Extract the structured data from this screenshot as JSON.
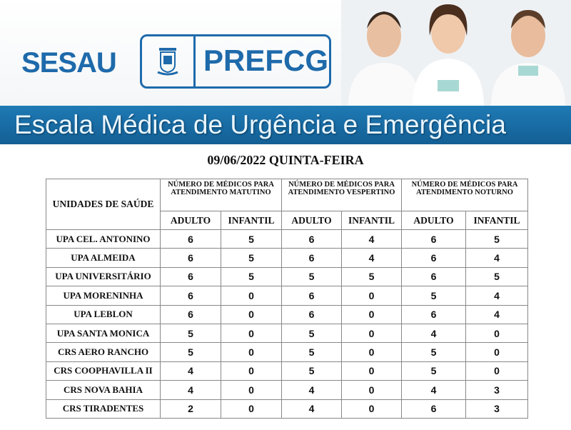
{
  "header": {
    "sesau_logo": "SESAU",
    "prefcg_logo": "PREFCG",
    "banner_title": "Escala Médica de Urgência e Emergência"
  },
  "date": "09/06/2022 QUINTA-FEIRA",
  "table": {
    "unit_header": "UNIDADES DE SAÚDE",
    "groups": [
      "NÚMERO DE MÉDICOS PARA ATENDIMENTO MATUTINO",
      "NÚMERO DE MÉDICOS PARA ATENDIMENTO VESPERTINO",
      "NÚMERO DE MÉDICOS PARA ATENDIMENTO NOTURNO"
    ],
    "sub": [
      "ADULTO",
      "INFANTIL"
    ],
    "rows": [
      {
        "name": "UPA CEL. ANTONINO",
        "v": [
          "6",
          "5",
          "6",
          "4",
          "6",
          "5"
        ]
      },
      {
        "name": "UPA ALMEIDA",
        "v": [
          "6",
          "5",
          "6",
          "4",
          "6",
          "4"
        ]
      },
      {
        "name": "UPA UNIVERSITÁRIO",
        "v": [
          "6",
          "5",
          "5",
          "5",
          "6",
          "5"
        ]
      },
      {
        "name": "UPA MORENINHA",
        "v": [
          "6",
          "0",
          "6",
          "0",
          "5",
          "4"
        ]
      },
      {
        "name": "UPA LEBLON",
        "v": [
          "6",
          "0",
          "6",
          "0",
          "6",
          "4"
        ]
      },
      {
        "name": "UPA SANTA MONICA",
        "v": [
          "5",
          "0",
          "5",
          "0",
          "4",
          "0"
        ]
      },
      {
        "name": "CRS AERO RANCHO",
        "v": [
          "5",
          "0",
          "5",
          "0",
          "5",
          "0"
        ]
      },
      {
        "name": "CRS COOPHAVILLA II",
        "v": [
          "4",
          "0",
          "5",
          "0",
          "5",
          "0"
        ]
      },
      {
        "name": "CRS NOVA BAHIA",
        "v": [
          "4",
          "0",
          "4",
          "0",
          "4",
          "3"
        ]
      },
      {
        "name": "CRS TIRADENTES",
        "v": [
          "2",
          "0",
          "4",
          "0",
          "6",
          "3"
        ]
      }
    ]
  },
  "colors": {
    "brand_blue": "#1e6aab",
    "banner": "#1a6ea8"
  }
}
